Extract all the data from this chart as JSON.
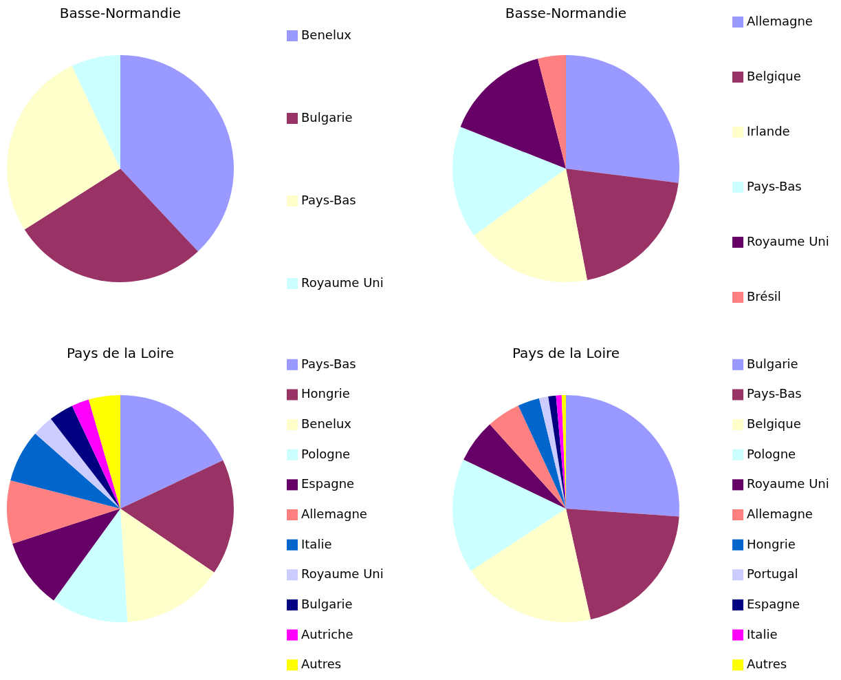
{
  "chart_data": [
    {
      "type": "pie",
      "title": "Basse-Normandie",
      "categories": [
        "Benelux",
        "Bulgarie",
        "Pays-Bas",
        "Royaume Uni"
      ],
      "values": [
        38,
        28,
        27,
        7
      ],
      "colors": [
        "#9999ff",
        "#993366",
        "#ffffcc",
        "#ccffff"
      ],
      "legend": "right"
    },
    {
      "type": "pie",
      "title": "Basse-Normandie",
      "categories": [
        "Allemagne",
        "Belgique",
        "Irlande",
        "Pays-Bas",
        "Royaume Uni",
        "Brésil"
      ],
      "values": [
        27,
        20,
        18,
        16,
        15,
        4
      ],
      "colors": [
        "#9999ff",
        "#993366",
        "#ffffcc",
        "#ccffff",
        "#660066",
        "#ff8080"
      ],
      "legend": "right"
    },
    {
      "type": "pie",
      "title": "Pays de la Loire",
      "categories": [
        "Pays-Bas",
        "Hongrie",
        "Benelux",
        "Pologne",
        "Espagne",
        "Allemagne",
        "Italie",
        "Royaume Uni",
        "Bulgarie",
        "Autriche",
        "Autres"
      ],
      "values": [
        18,
        16.5,
        14.5,
        11,
        10,
        9,
        7.5,
        3,
        3.5,
        2.5,
        4.5
      ],
      "colors": [
        "#9999ff",
        "#993366",
        "#ffffcc",
        "#ccffff",
        "#660066",
        "#ff8080",
        "#0066cc",
        "#ccccff",
        "#000080",
        "#ff00ff",
        "#ffff00"
      ],
      "legend": "right"
    },
    {
      "type": "pie",
      "title": "Pays de la Loire",
      "categories": [
        "Bulgarie",
        "Pays-Bas",
        "Belgique",
        "Pologne",
        "Royaume Uni",
        "Allemagne",
        "Hongrie",
        "Portugal",
        "Espagne",
        "Italie",
        "Autres"
      ],
      "values": [
        26.1,
        20.4,
        19.3,
        16.3,
        6.2,
        4.8,
        3.1,
        1.3,
        1.1,
        0.8,
        0.6
      ],
      "colors": [
        "#9999ff",
        "#993366",
        "#ffffcc",
        "#ccffff",
        "#660066",
        "#ff8080",
        "#0066cc",
        "#ccccff",
        "#000080",
        "#ff00ff",
        "#ffff00"
      ],
      "legend": "right"
    }
  ]
}
